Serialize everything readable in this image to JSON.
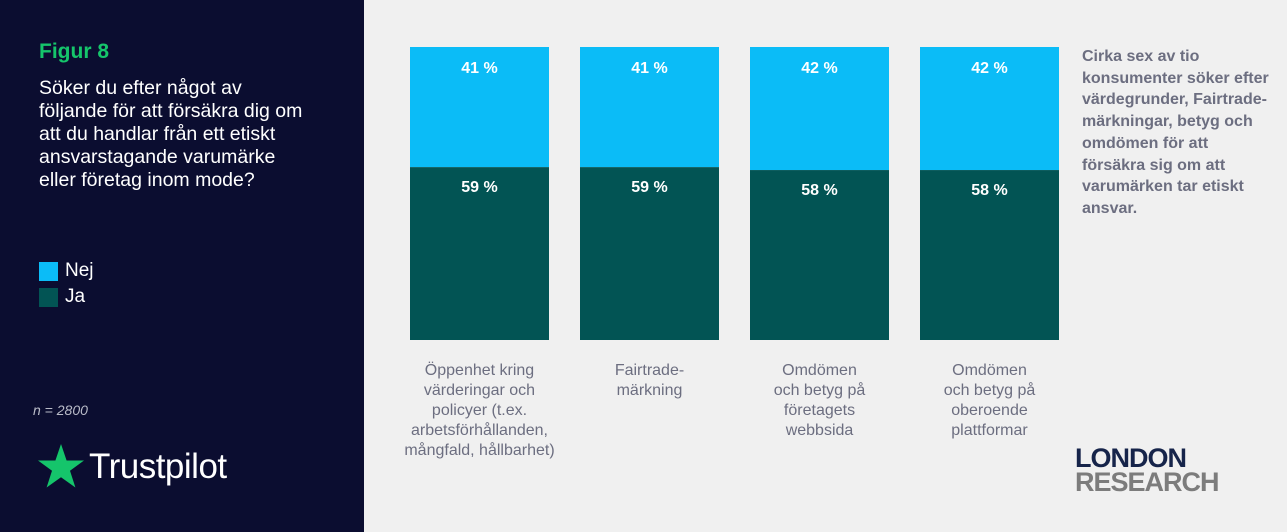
{
  "figure_label": "Figur 8",
  "question": "Söker du efter något av följande för att försäkra dig om att du handlar från ett etiskt ansvarstagande varumärke eller företag inom mode?",
  "legend": [
    {
      "label": "Nej",
      "color": "#0bbcf7"
    },
    {
      "label": "Ja",
      "color": "#025454"
    }
  ],
  "sample_size": "n = 2800",
  "brand": {
    "name": "Trustpilot",
    "icon": "star-icon",
    "color": "#15c56b"
  },
  "note": "Cirka sex av tio konsumenter söker efter värdegrunder, Fairtrade-märkningar, betyg och omdömen för att försäkra sig om att varumärken tar etiskt ansvar.",
  "publisher": {
    "line1": "LONDON",
    "line2": "RESEARCH"
  },
  "chart_data": {
    "type": "bar",
    "stacked": true,
    "percent_stacked": true,
    "categories": [
      [
        "Öppenhet kring",
        "värderingar och",
        "policyer (t.ex.",
        "arbetsförhållanden,",
        "mångfald, hållbarhet)"
      ],
      [
        "Fairtrade-",
        "märkning"
      ],
      [
        "Omdömen",
        "och betyg på",
        "företagets",
        "webbsida"
      ],
      [
        "Omdömen",
        "och betyg på",
        "oberoende",
        "plattformar"
      ]
    ],
    "series": [
      {
        "name": "Ja",
        "color": "#025454",
        "values": [
          59,
          59,
          58,
          58
        ],
        "labels": [
          "59 %",
          "59 %",
          "58 %",
          "58 %"
        ]
      },
      {
        "name": "Nej",
        "color": "#0bbcf7",
        "values": [
          41,
          41,
          42,
          42
        ],
        "labels": [
          "41 %",
          "41 %",
          "42 %",
          "42 %"
        ]
      }
    ],
    "ylim": [
      0,
      100
    ],
    "grid": false,
    "legend_position": "left"
  }
}
